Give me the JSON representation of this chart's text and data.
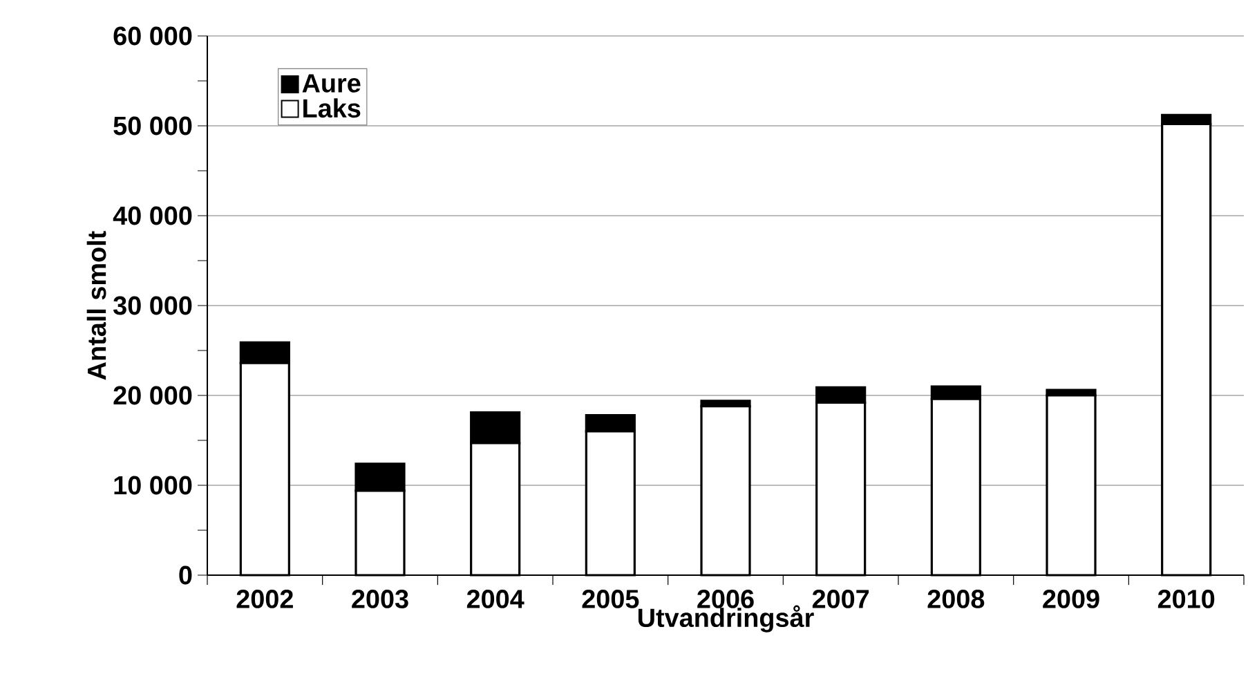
{
  "chart_data": {
    "type": "bar",
    "stacked": true,
    "xlabel": "Utvandringsår",
    "ylabel": "Antall smolt",
    "categories": [
      "2002",
      "2003",
      "2004",
      "2005",
      "2006",
      "2007",
      "2008",
      "2009",
      "2010"
    ],
    "series": [
      {
        "name": "Laks",
        "color": "#ffffff",
        "values": [
          23600,
          9400,
          14700,
          16000,
          18800,
          19200,
          19600,
          20000,
          50200
        ]
      },
      {
        "name": "Aure",
        "color": "#000000",
        "values": [
          2300,
          3000,
          3400,
          1800,
          600,
          1700,
          1400,
          600,
          1000
        ]
      }
    ],
    "ylim": [
      0,
      60000
    ],
    "yticks": [
      0,
      {
        "value": 5000,
        "label": null
      },
      {
        "value": 10000,
        "label": "10 000"
      },
      {
        "value": 15000,
        "label": null
      },
      {
        "value": 20000,
        "label": "20 000"
      },
      {
        "value": 25000,
        "label": null
      },
      {
        "value": 30000,
        "label": "30 000"
      },
      {
        "value": 35000,
        "label": null
      },
      {
        "value": 40000,
        "label": "40 000"
      },
      {
        "value": 45000,
        "label": null
      },
      {
        "value": 50000,
        "label": "50 000"
      },
      {
        "value": 55000,
        "label": null
      },
      {
        "value": 60000,
        "label": "60 000"
      }
    ],
    "grid": "y",
    "legend": "top left"
  }
}
